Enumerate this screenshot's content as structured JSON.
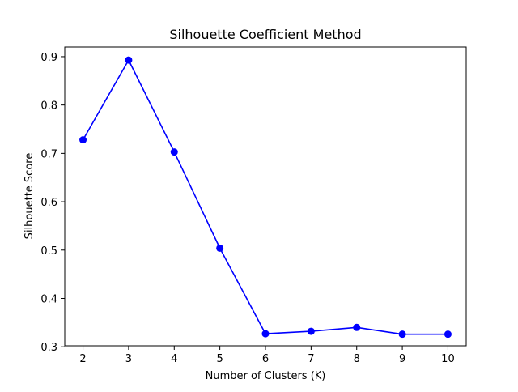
{
  "chart_data": {
    "type": "line",
    "title": "Silhouette Coefficient Method",
    "xlabel": "Number of Clusters (K)",
    "ylabel": "Silhouette Score",
    "x": [
      2,
      3,
      4,
      5,
      6,
      7,
      8,
      9,
      10
    ],
    "series": [
      {
        "values": [
          0.728,
          0.893,
          0.703,
          0.504,
          0.327,
          0.332,
          0.34,
          0.326,
          0.326
        ]
      }
    ],
    "xlim": [
      1.6,
      10.4
    ],
    "ylim": [
      0.302,
      0.92
    ],
    "xticks": [
      2,
      3,
      4,
      5,
      6,
      7,
      8,
      9,
      10
    ],
    "yticks": [
      0.3,
      0.4,
      0.5,
      0.6,
      0.7,
      0.8,
      0.9
    ],
    "ytick_labels": [
      "0.3",
      "0.4",
      "0.5",
      "0.6",
      "0.7",
      "0.8",
      "0.9"
    ],
    "grid": false,
    "line_color": "#0000ff",
    "marker": "circle"
  }
}
